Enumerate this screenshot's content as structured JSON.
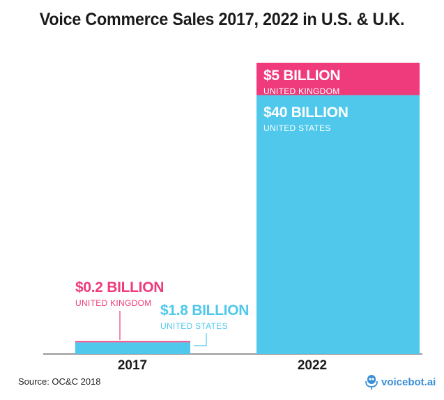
{
  "chart_data": {
    "type": "bar",
    "stacked": true,
    "title": "Voice Commerce Sales 2017, 2022 in U.S. & U.K.",
    "categories": [
      "2017",
      "2022"
    ],
    "series": [
      {
        "name": "UNITED STATES",
        "values": [
          1.8,
          40
        ],
        "labels": [
          "$1.8 BILLION",
          "$40 BILLION"
        ],
        "color": "#4fc8ec"
      },
      {
        "name": "UNITED KINGDOM",
        "values": [
          0.2,
          5
        ],
        "labels": [
          "$0.2 BILLION",
          "$5 BILLION"
        ],
        "color": "#ef3a7c"
      }
    ],
    "ylim": [
      0,
      45
    ],
    "unit": "billion USD",
    "grid": false,
    "source": "Source: OC&C 2018"
  },
  "logo": {
    "text": "voicebot.ai",
    "icon": "microphone-robot-icon"
  }
}
